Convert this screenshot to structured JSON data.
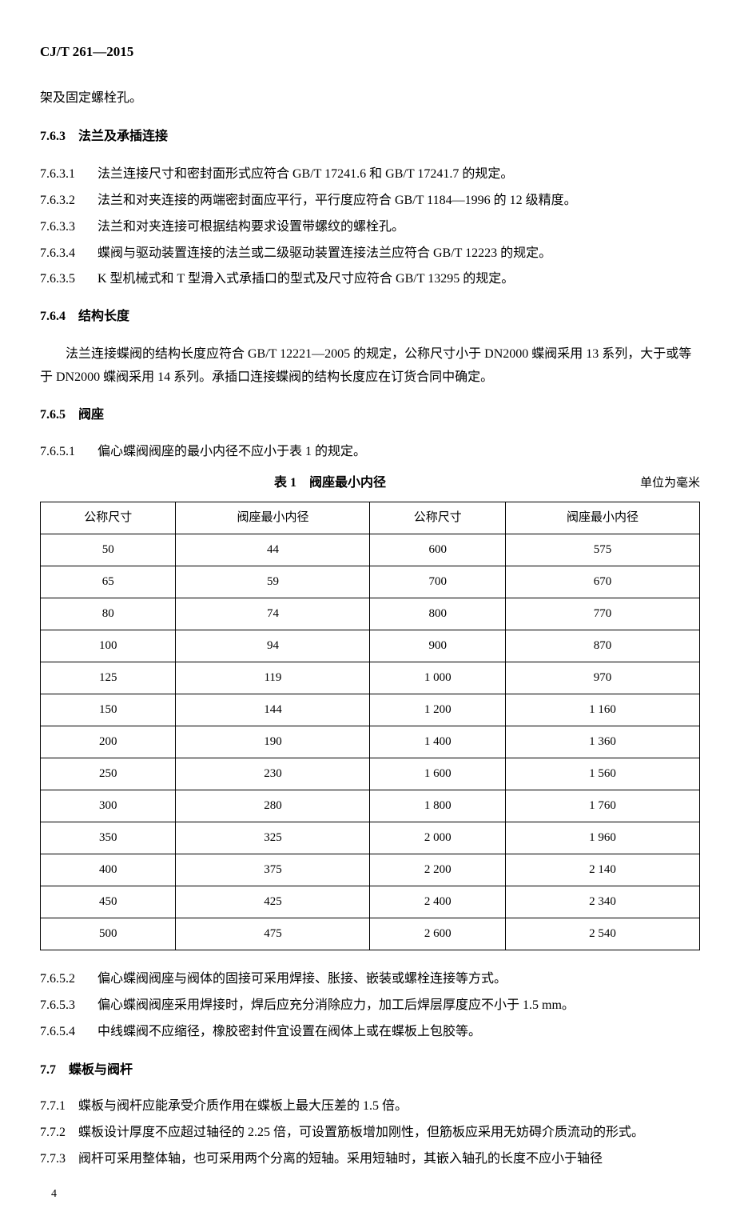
{
  "header": {
    "standard_code": "CJ/T 261—2015"
  },
  "continuation": "架及固定螺栓孔。",
  "section_763": {
    "number": "7.6.3",
    "title": "法兰及承插连接",
    "clauses": [
      {
        "num": "7.6.3.1",
        "text": "法兰连接尺寸和密封面形式应符合 GB/T 17241.6 和 GB/T 17241.7 的规定。"
      },
      {
        "num": "7.6.3.2",
        "text": "法兰和对夹连接的两端密封面应平行，平行度应符合 GB/T 1184—1996 的 12 级精度。"
      },
      {
        "num": "7.6.3.3",
        "text": "法兰和对夹连接可根据结构要求设置带螺纹的螺栓孔。"
      },
      {
        "num": "7.6.3.4",
        "text": "蝶阀与驱动装置连接的法兰或二级驱动装置连接法兰应符合 GB/T 12223 的规定。"
      },
      {
        "num": "7.6.3.5",
        "text": "K 型机械式和 T 型滑入式承插口的型式及尺寸应符合 GB/T 13295 的规定。"
      }
    ]
  },
  "section_764": {
    "number": "7.6.4",
    "title": "结构长度",
    "paragraph": "法兰连接蝶阀的结构长度应符合 GB/T 12221—2005 的规定，公称尺寸小于 DN2000 蝶阀采用 13 系列，大于或等于 DN2000 蝶阀采用 14 系列。承插口连接蝶阀的结构长度应在订货合同中确定。"
  },
  "section_765": {
    "number": "7.6.5",
    "title": "阀座",
    "clause_1": {
      "num": "7.6.5.1",
      "text": "偏心蝶阀阀座的最小内径不应小于表 1 的规定。"
    },
    "clause_2": {
      "num": "7.6.5.2",
      "text": "偏心蝶阀阀座与阀体的固接可采用焊接、胀接、嵌装或螺栓连接等方式。"
    },
    "clause_3": {
      "num": "7.6.5.3",
      "text": "偏心蝶阀阀座采用焊接时，焊后应充分消除应力，加工后焊层厚度应不小于 1.5 mm。"
    },
    "clause_4": {
      "num": "7.6.5.4",
      "text": "中线蝶阀不应缩径，橡胶密封件宜设置在阀体上或在蝶板上包胶等。"
    }
  },
  "table1": {
    "caption": "表 1　阀座最小内径",
    "unit": "单位为毫米",
    "headers": [
      "公称尺寸",
      "阀座最小内径",
      "公称尺寸",
      "阀座最小内径"
    ],
    "rows": [
      [
        "50",
        "44",
        "600",
        "575"
      ],
      [
        "65",
        "59",
        "700",
        "670"
      ],
      [
        "80",
        "74",
        "800",
        "770"
      ],
      [
        "100",
        "94",
        "900",
        "870"
      ],
      [
        "125",
        "119",
        "1 000",
        "970"
      ],
      [
        "150",
        "144",
        "1 200",
        "1 160"
      ],
      [
        "200",
        "190",
        "1 400",
        "1 360"
      ],
      [
        "250",
        "230",
        "1 600",
        "1 560"
      ],
      [
        "300",
        "280",
        "1 800",
        "1 760"
      ],
      [
        "350",
        "325",
        "2 000",
        "1 960"
      ],
      [
        "400",
        "375",
        "2 200",
        "2 140"
      ],
      [
        "450",
        "425",
        "2 400",
        "2 340"
      ],
      [
        "500",
        "475",
        "2 600",
        "2 540"
      ]
    ]
  },
  "section_77": {
    "number": "7.7",
    "title": "蝶板与阀杆",
    "clauses": [
      {
        "num": "7.7.1",
        "text": "蝶板与阀杆应能承受介质作用在蝶板上最大压差的 1.5 倍。"
      },
      {
        "num": "7.7.2",
        "text": "蝶板设计厚度不应超过轴径的 2.25 倍，可设置筋板增加刚性，但筋板应采用无妨碍介质流动的形式。"
      },
      {
        "num": "7.7.3",
        "text": "阀杆可采用整体轴，也可采用两个分离的短轴。采用短轴时，其嵌入轴孔的长度不应小于轴径"
      }
    ]
  },
  "page_number": "4"
}
